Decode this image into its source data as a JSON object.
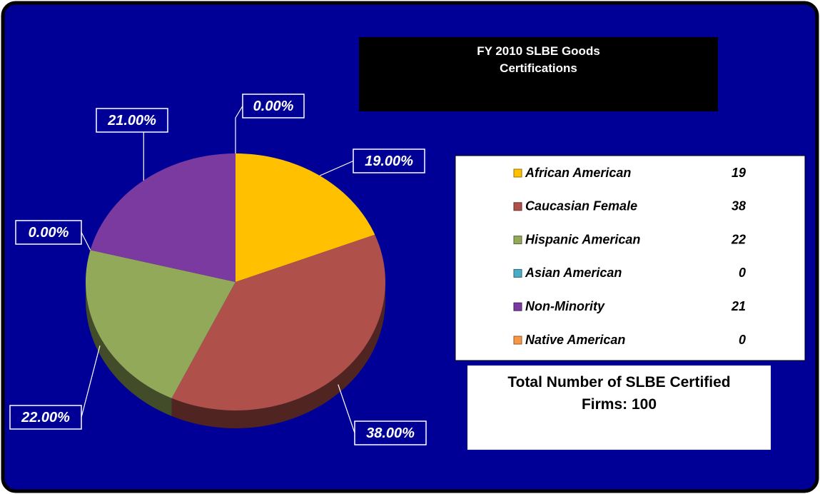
{
  "chart_data": {
    "type": "pie",
    "title": "FY 2010 SLBE Goods Certifications",
    "categories": [
      "African American",
      "Caucasian Female",
      "Hispanic American",
      "Asian American",
      "Non-Minority",
      "Native American"
    ],
    "values": [
      19,
      38,
      22,
      0,
      21,
      0
    ],
    "value_labels": [
      "19.00%",
      "38.00%",
      "22.00%",
      "0.00%",
      "21.00%",
      "0.00%"
    ],
    "colors": [
      "#ffc000",
      "#b0504a",
      "#93a95a",
      "#4bacc6",
      "#7a3aa0",
      "#f79646"
    ],
    "annotation": "Total Number of SLBE Certified Firms: 100",
    "legend": "right"
  }
}
